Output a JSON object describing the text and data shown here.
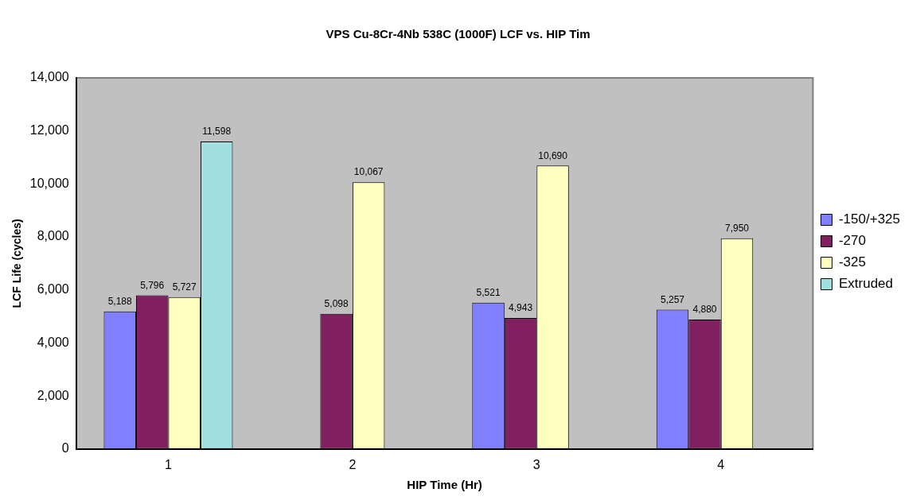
{
  "chart_data": {
    "type": "bar",
    "title": "VPS Cu-8Cr-4Nb 538C (1000F) LCF vs. HIP Tim",
    "xlabel": "HIP Time (Hr)",
    "ylabel": "LCF Life (cycles)",
    "categories": [
      "1",
      "2",
      "3",
      "4"
    ],
    "series": [
      {
        "name": "-150/+325",
        "color": "#8080ff",
        "values": [
          5188,
          null,
          5521,
          5257
        ],
        "value_labels": [
          "5,188",
          null,
          "5,521",
          "5,257"
        ]
      },
      {
        "name": "-270",
        "color": "#802060",
        "values": [
          5796,
          5098,
          4943,
          4880
        ],
        "value_labels": [
          "5,796",
          "5,098",
          "4,943",
          "4,880"
        ]
      },
      {
        "name": "-325",
        "color": "#ffffc0",
        "values": [
          5727,
          10067,
          10690,
          7950
        ],
        "value_labels": [
          "5,727",
          "10,067",
          "10,690",
          "7,950"
        ]
      },
      {
        "name": "Extruded",
        "color": "#a0e0e0",
        "values": [
          11598,
          null,
          null,
          null
        ],
        "value_labels": [
          "11,598",
          null,
          null,
          null
        ]
      }
    ],
    "ylim": [
      0,
      14000
    ],
    "yticks": [
      {
        "value": 0,
        "label": "0"
      },
      {
        "value": 2000,
        "label": "2,000"
      },
      {
        "value": 4000,
        "label": "4,000"
      },
      {
        "value": 6000,
        "label": "6,000"
      },
      {
        "value": 8000,
        "label": "8,000"
      },
      {
        "value": 10000,
        "label": "10,000"
      },
      {
        "value": 12000,
        "label": "12,000"
      },
      {
        "value": 14000,
        "label": "14,000"
      }
    ],
    "grid": false,
    "legend": "right"
  }
}
